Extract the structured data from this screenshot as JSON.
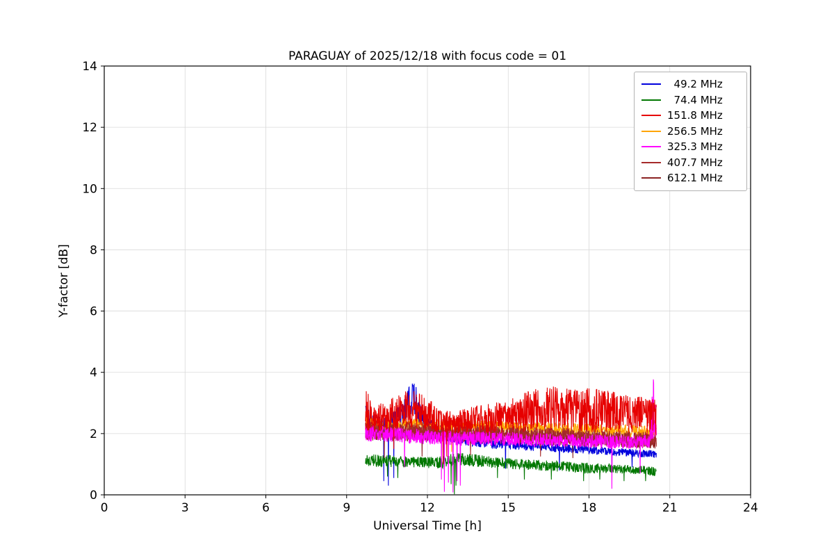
{
  "chart_data": {
    "type": "line",
    "title": "PARAGUAY of 2025/12/18 with focus code = 01",
    "xlabel": "Universal Time [h]",
    "ylabel": "Y-factor [dB]",
    "xlim": [
      0,
      24
    ],
    "ylim": [
      0,
      14
    ],
    "xticks": [
      0,
      3,
      6,
      9,
      12,
      15,
      18,
      21,
      24
    ],
    "yticks": [
      0,
      2,
      4,
      6,
      8,
      10,
      12,
      14
    ],
    "grid": true,
    "legend_position": "upper right",
    "x_range": [
      9.7,
      20.5
    ],
    "sample_step": 0.01,
    "draw_order": [
      0,
      1,
      3,
      6,
      5,
      4,
      2
    ],
    "series": [
      {
        "name": "  49.2 MHz",
        "color": "#0000dd",
        "envelope": [
          [
            9.7,
            2.0,
            3.1
          ],
          [
            9.95,
            2.0,
            2.7
          ],
          [
            10.4,
            1.95,
            2.6
          ],
          [
            11.0,
            2.2,
            2.9
          ],
          [
            11.35,
            2.5,
            3.6
          ],
          [
            11.5,
            2.6,
            3.85
          ],
          [
            11.65,
            2.3,
            3.3
          ],
          [
            11.9,
            2.1,
            2.8
          ],
          [
            12.3,
            1.9,
            2.4
          ],
          [
            12.8,
            1.7,
            2.1
          ],
          [
            13.5,
            1.6,
            1.95
          ],
          [
            14.5,
            1.5,
            1.85
          ],
          [
            15.5,
            1.45,
            1.75
          ],
          [
            16.5,
            1.4,
            1.7
          ],
          [
            17.5,
            1.35,
            1.65
          ],
          [
            18.5,
            1.3,
            1.55
          ],
          [
            19.5,
            1.25,
            1.5
          ],
          [
            20.5,
            1.2,
            1.45
          ]
        ],
        "dips": [
          [
            10.38,
            0.45
          ],
          [
            10.55,
            0.3
          ],
          [
            10.75,
            0.55
          ],
          [
            12.62,
            1.05
          ],
          [
            14.9,
            0.85
          ],
          [
            16.9,
            0.8
          ],
          [
            18.85,
            0.75
          ],
          [
            19.6,
            0.9
          ]
        ]
      },
      {
        "name": "  74.4 MHz",
        "color": "#007700",
        "envelope": [
          [
            9.7,
            0.95,
            1.35
          ],
          [
            10.5,
            0.9,
            1.3
          ],
          [
            11.5,
            0.9,
            1.25
          ],
          [
            12.4,
            0.85,
            1.25
          ],
          [
            13.2,
            0.95,
            1.4
          ],
          [
            14.0,
            0.9,
            1.3
          ],
          [
            15.0,
            0.85,
            1.2
          ],
          [
            16.0,
            0.8,
            1.15
          ],
          [
            17.0,
            0.75,
            1.1
          ],
          [
            18.0,
            0.7,
            1.05
          ],
          [
            19.0,
            0.7,
            1.0
          ],
          [
            20.0,
            0.65,
            0.95
          ],
          [
            20.5,
            0.6,
            0.9
          ]
        ],
        "dips": [
          [
            10.52,
            0.6
          ],
          [
            10.9,
            0.55
          ],
          [
            12.88,
            0.35
          ],
          [
            13.0,
            0.02
          ],
          [
            13.06,
            0.3
          ],
          [
            14.6,
            0.55
          ],
          [
            15.6,
            0.5
          ],
          [
            16.6,
            0.5
          ],
          [
            17.8,
            0.45
          ],
          [
            18.4,
            0.5
          ],
          [
            19.3,
            0.45
          ],
          [
            20.1,
            0.45
          ]
        ]
      },
      {
        "name": "151.8 MHz",
        "color": "#e60000",
        "envelope": [
          [
            9.7,
            2.1,
            3.45
          ],
          [
            10.1,
            2.05,
            2.9
          ],
          [
            10.5,
            2.1,
            3.1
          ],
          [
            11.0,
            2.15,
            3.3
          ],
          [
            11.5,
            2.2,
            3.5
          ],
          [
            12.0,
            2.1,
            3.2
          ],
          [
            12.5,
            2.0,
            2.8
          ],
          [
            13.0,
            2.0,
            2.7
          ],
          [
            13.7,
            2.0,
            2.9
          ],
          [
            14.5,
            2.0,
            3.0
          ],
          [
            15.3,
            2.05,
            3.2
          ],
          [
            16.0,
            2.1,
            3.5
          ],
          [
            16.6,
            2.1,
            3.55
          ],
          [
            17.3,
            2.1,
            3.45
          ],
          [
            18.0,
            2.05,
            3.5
          ],
          [
            18.7,
            2.0,
            3.4
          ],
          [
            19.3,
            2.0,
            3.3
          ],
          [
            20.0,
            1.95,
            3.2
          ],
          [
            20.5,
            1.9,
            3.1
          ]
        ],
        "dips": [
          [
            10.75,
            1.5
          ],
          [
            12.58,
            1.0
          ],
          [
            12.72,
            1.25
          ]
        ]
      },
      {
        "name": "256.5 MHz",
        "color": "#ffa500",
        "envelope": [
          [
            9.7,
            2.1,
            2.55
          ],
          [
            11,
            2.1,
            2.5
          ],
          [
            13,
            2.05,
            2.45
          ],
          [
            15,
            2.0,
            2.4
          ],
          [
            17,
            1.95,
            2.35
          ],
          [
            19,
            1.9,
            2.3
          ],
          [
            20.5,
            1.85,
            2.25
          ]
        ],
        "dips": [
          [
            12.9,
            1.4
          ]
        ]
      },
      {
        "name": "325.3 MHz",
        "color": "#ff00ff",
        "envelope": [
          [
            9.7,
            1.75,
            2.3
          ],
          [
            11.0,
            1.7,
            2.2
          ],
          [
            12.4,
            1.6,
            2.1
          ],
          [
            13.3,
            1.6,
            2.1
          ],
          [
            15.0,
            1.6,
            2.05
          ],
          [
            17.0,
            1.55,
            2.0
          ],
          [
            19.0,
            1.5,
            1.95
          ],
          [
            20.25,
            1.5,
            1.95
          ],
          [
            20.32,
            1.6,
            3.2
          ],
          [
            20.4,
            1.7,
            3.85
          ],
          [
            20.46,
            1.6,
            3.0
          ],
          [
            20.5,
            1.55,
            2.2
          ]
        ],
        "dips": [
          [
            11.15,
            0.9
          ],
          [
            12.52,
            0.5
          ],
          [
            12.63,
            0.1
          ],
          [
            12.78,
            0.4
          ],
          [
            12.95,
            0.08
          ],
          [
            13.1,
            0.45
          ],
          [
            13.22,
            0.3
          ],
          [
            18.85,
            0.2
          ],
          [
            19.9,
            0.7
          ]
        ]
      },
      {
        "name": "407.7 MHz",
        "color": "#a52a2a",
        "envelope": [
          [
            9.7,
            1.8,
            2.45
          ],
          [
            11,
            1.8,
            2.4
          ],
          [
            13,
            1.75,
            2.3
          ],
          [
            15,
            1.7,
            2.25
          ],
          [
            17,
            1.65,
            2.2
          ],
          [
            19,
            1.6,
            2.1
          ],
          [
            20.5,
            1.55,
            2.05
          ]
        ],
        "dips": [
          [
            10.4,
            1.2
          ],
          [
            13.6,
            1.3
          ],
          [
            16.2,
            1.25
          ]
        ]
      },
      {
        "name": "612.1 MHz",
        "color": "#8b2323",
        "envelope": [
          [
            9.7,
            1.75,
            2.35
          ],
          [
            11,
            1.75,
            2.3
          ],
          [
            13,
            1.7,
            2.25
          ],
          [
            15,
            1.65,
            2.2
          ],
          [
            17,
            1.6,
            2.1
          ],
          [
            19,
            1.55,
            2.05
          ],
          [
            20.5,
            1.5,
            2.0
          ]
        ],
        "dips": [
          [
            11.8,
            1.25
          ],
          [
            17.4,
            1.2
          ]
        ]
      }
    ]
  }
}
